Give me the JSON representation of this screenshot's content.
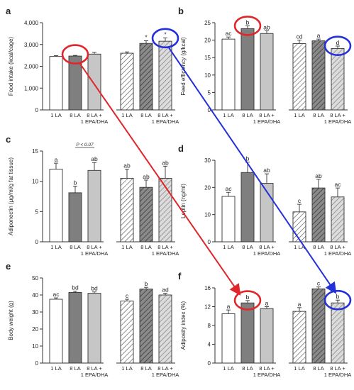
{
  "figure": {
    "colors": {
      "bar_white": "#ffffff",
      "bar_dark": "#7f7f7f",
      "bar_light": "#c6c6c6",
      "hatch_light": "#e4e4e4",
      "hatch_dark": "#555555",
      "outline": "#333333",
      "annotation_red": "#e0252b",
      "annotation_blue": "#2430d8"
    }
  },
  "chart_data": [
    {
      "id": "a",
      "panel_label": "a",
      "type": "bar",
      "ylabel": "Food intake (kcal/cage)",
      "ylim": [
        0,
        4000
      ],
      "yticks": [
        0,
        1000,
        2000,
        3000,
        4000
      ],
      "ytick_labels": [
        "0",
        "1,000",
        "2,000",
        "3,000",
        "4,000"
      ],
      "categories": [
        [
          "1 LA"
        ],
        [
          "8 LA"
        ],
        [
          "8 LA +",
          "1 EPA/DHA"
        ],
        [
          "1 LA"
        ],
        [
          "8 LA"
        ],
        [
          "8 LA +",
          "1 EPA/DHA"
        ]
      ],
      "values": [
        2450,
        2470,
        2560,
        2600,
        3050,
        3150
      ],
      "errors": [
        40,
        30,
        80,
        60,
        120,
        150
      ],
      "bar_labels": [
        "",
        "",
        "",
        "",
        "*",
        "*"
      ],
      "bar_styles": [
        "white",
        "dark",
        "light",
        "white_hatch",
        "dark_hatch",
        "light_hatch"
      ],
      "annotations": {
        "red_circle_bar": 1,
        "blue_circle_bar": 5
      },
      "bracket_text": ""
    },
    {
      "id": "b",
      "panel_label": "b",
      "type": "bar",
      "ylabel": "Feed efficiency (g/kcal)",
      "ylim": [
        0,
        25
      ],
      "yticks": [
        0,
        5,
        10,
        15,
        20,
        25
      ],
      "ytick_labels": [
        "0",
        "5",
        "10",
        "15",
        "20",
        "25"
      ],
      "categories": [
        [
          "1 LA"
        ],
        [
          "8 LA"
        ],
        [
          "8 LA +",
          "1 EPA/DHA"
        ],
        [
          "1 LA"
        ],
        [
          "8 LA"
        ],
        [
          "8 LA +",
          "1 EPA/DHA"
        ]
      ],
      "values": [
        20.3,
        23.3,
        21.9,
        19.0,
        19.8,
        17.6
      ],
      "errors": [
        0.6,
        0.8,
        0.8,
        1.0,
        0.5,
        0.7
      ],
      "bar_labels": [
        "ac",
        "b",
        "ab",
        "cd",
        "a",
        "d"
      ],
      "bar_styles": [
        "white",
        "dark",
        "light",
        "white_hatch",
        "dark_hatch",
        "light_hatch"
      ],
      "annotations": {
        "red_circle_bar": 1,
        "blue_circle_bar": 5
      },
      "bracket_text": ""
    },
    {
      "id": "c",
      "panel_label": "c",
      "type": "bar",
      "ylabel": "Adiponectin (μg/ml/g fat tissue)",
      "ylim": [
        0,
        15
      ],
      "yticks": [
        0,
        5,
        10,
        15
      ],
      "ytick_labels": [
        "0",
        "5",
        "10",
        "15"
      ],
      "categories": [
        [
          "1 LA"
        ],
        [
          "8 LA"
        ],
        [
          "8 LA +",
          "1 EPA/DHA"
        ],
        [
          "1 LA"
        ],
        [
          "8 LA"
        ],
        [
          "8 LA +",
          "1 EPA/DHA"
        ]
      ],
      "values": [
        12.0,
        8.1,
        11.8,
        10.5,
        9.0,
        10.5
      ],
      "errors": [
        1.0,
        1.1,
        1.3,
        1.5,
        1.2,
        2.0
      ],
      "bar_labels": [
        "a",
        "b",
        "ab",
        "ab",
        "ab",
        "ab"
      ],
      "bar_styles": [
        "white",
        "dark",
        "light",
        "white_hatch",
        "dark_hatch",
        "light_hatch"
      ],
      "annotations": {},
      "bracket_text": "P < 0.07"
    },
    {
      "id": "d",
      "panel_label": "d",
      "type": "bar",
      "ylabel": "Leptin (ng/ml)",
      "ylim": [
        0,
        30
      ],
      "yticks": [
        0,
        10,
        20,
        30
      ],
      "ytick_labels": [
        "0",
        "10",
        "20",
        "30"
      ],
      "categories": [
        [
          "1 LA"
        ],
        [
          "8 LA"
        ],
        [
          "8 LA +",
          "1 EPA/DHA"
        ],
        [
          "1 LA"
        ],
        [
          "8 LA"
        ],
        [
          "8 LA +",
          "1 EPA/DHA"
        ]
      ],
      "values": [
        16.7,
        25.5,
        21.5,
        11.0,
        19.8,
        16.5
      ],
      "errors": [
        1.5,
        3.8,
        3.5,
        2.8,
        3.2,
        3.3
      ],
      "bar_labels": [
        "ac",
        "b",
        "ab",
        "c",
        "ab",
        "ac"
      ],
      "bar_styles": [
        "white",
        "dark",
        "light",
        "white_hatch",
        "dark_hatch",
        "light_hatch"
      ],
      "annotations": {},
      "bracket_text": ""
    },
    {
      "id": "e",
      "panel_label": "e",
      "type": "bar",
      "ylabel": "Body weight (g)",
      "ylim": [
        0,
        50
      ],
      "yticks": [
        0,
        10,
        20,
        30,
        40,
        50
      ],
      "ytick_labels": [
        "0",
        "10",
        "20",
        "30",
        "40",
        "50"
      ],
      "categories": [
        [
          "1 LA"
        ],
        [
          "8 LA"
        ],
        [
          "8 LA +",
          "1 EPA/DHA"
        ],
        [
          "1 LA"
        ],
        [
          "8 LA"
        ],
        [
          "8 LA +",
          "1 EPA/DHA"
        ]
      ],
      "values": [
        37.5,
        41.5,
        41.0,
        36.5,
        43.5,
        40.0
      ],
      "errors": [
        0.8,
        0.8,
        0.8,
        1.0,
        1.0,
        1.0
      ],
      "bar_labels": [
        "ac",
        "bd",
        "bd",
        "c",
        "b",
        "ad"
      ],
      "bar_styles": [
        "white",
        "dark",
        "light",
        "white_hatch",
        "dark_hatch",
        "light_hatch"
      ],
      "annotations": {},
      "bracket_text": ""
    },
    {
      "id": "f",
      "panel_label": "f",
      "type": "bar",
      "ylabel": "Adiposity index (%)",
      "ylim": [
        0,
        16
      ],
      "yticks": [
        0,
        4,
        8,
        12,
        16
      ],
      "ytick_labels": [
        "0",
        "4",
        "8",
        "12",
        "16"
      ],
      "categories": [
        [
          "1 LA"
        ],
        [
          "8 LA"
        ],
        [
          "8 LA +",
          "1 EPA/DHA"
        ],
        [
          "1 LA"
        ],
        [
          "8 LA"
        ],
        [
          "8 LA +",
          "1 EPA/DHA"
        ]
      ],
      "values": [
        10.5,
        12.8,
        11.6,
        11.0,
        15.8,
        12.8
      ],
      "errors": [
        0.8,
        0.5,
        0.4,
        0.8,
        0.4,
        0.6
      ],
      "bar_labels": [
        "a",
        "b",
        "a",
        "a",
        "c",
        "b"
      ],
      "bar_styles": [
        "white",
        "dark",
        "light",
        "white_hatch",
        "dark_hatch",
        "light_hatch"
      ],
      "annotations": {
        "red_circle_bar": 1,
        "blue_circle_bar": 5
      },
      "bracket_text": ""
    }
  ]
}
